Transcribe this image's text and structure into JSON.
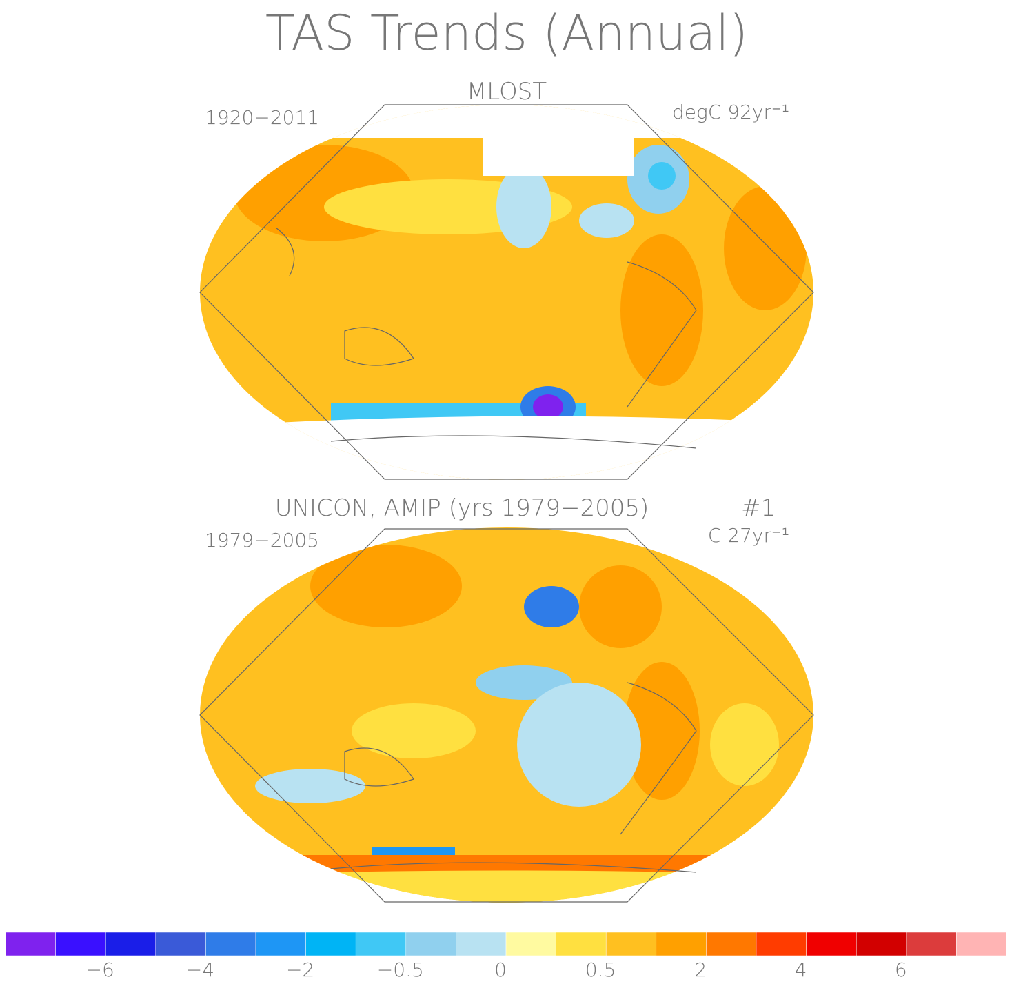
{
  "title": "TAS Trends (Annual)",
  "panels": [
    {
      "title": "MLOST",
      "period": "1920−2011",
      "units": "degC 92yr⁻¹"
    },
    {
      "title": "UNICON, AMIP (yrs 1979−2005)",
      "run": "#1",
      "period": "1979−2005",
      "units": "C 27yr⁻¹"
    }
  ],
  "colorbar": {
    "colors": [
      "#7f22ee",
      "#3a10ff",
      "#1a1ee8",
      "#3a5ad8",
      "#2f7ce8",
      "#1e96f5",
      "#00b4f5",
      "#40c8f5",
      "#90d0ee",
      "#b8e2f2",
      "#fffaa0",
      "#ffe040",
      "#ffc020",
      "#ffa000",
      "#ff7800",
      "#ff3c00",
      "#f00000",
      "#d20000",
      "#dc3c3c",
      "#ffb4b4"
    ],
    "labels": [
      "−6",
      "−4",
      "−2",
      "−0.5",
      "0",
      "0.5",
      "2",
      "4",
      "6"
    ]
  }
}
